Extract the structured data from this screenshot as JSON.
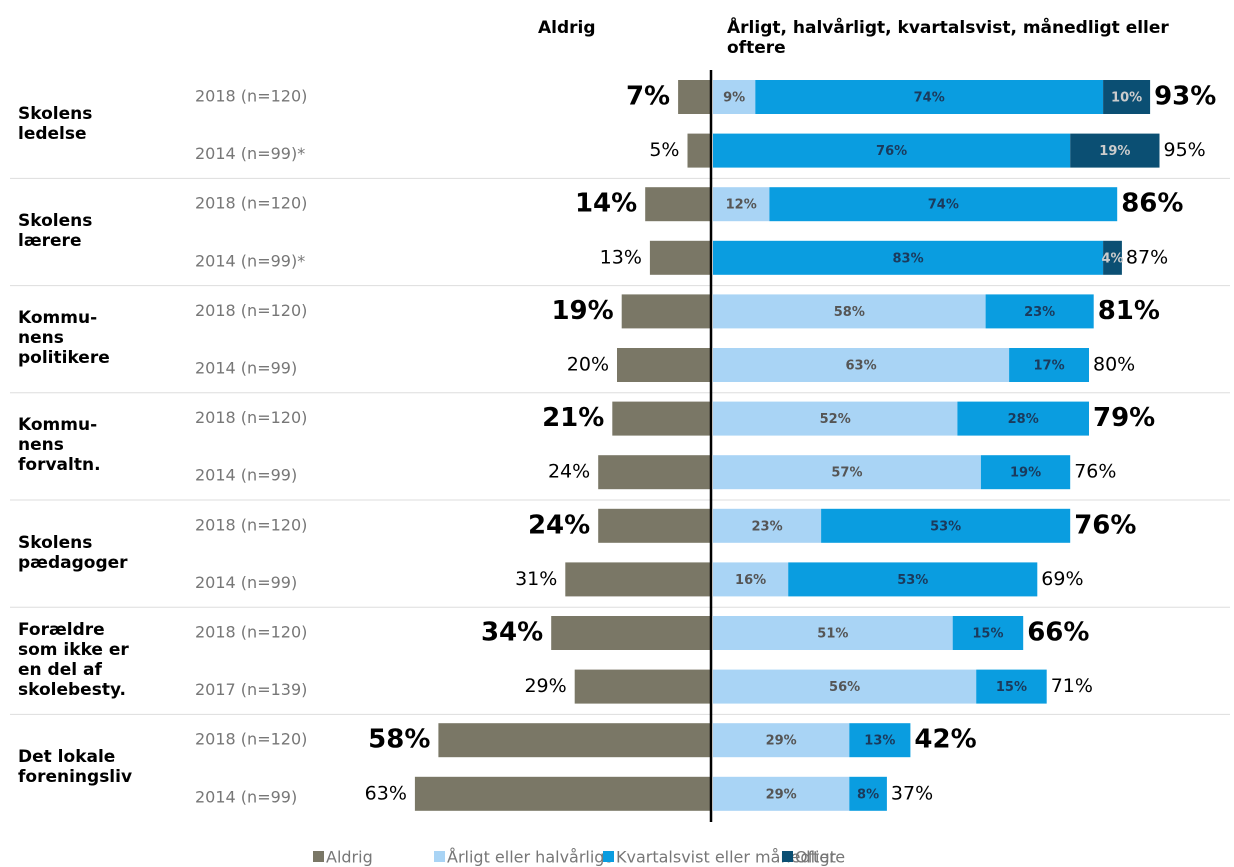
{
  "chart_data": {
    "type": "diverging_bar",
    "header_left": "Aldrig",
    "header_right": "Årligt, halvårligt, kvartalsvist, månedligt eller oftere",
    "groups": [
      "Skolens\nledelse",
      "Skolens\nlærere",
      "Kommu-\nnens\npolitikere",
      "Kommu-\nnens\nforvaltn.",
      "Skolens\npædagoger",
      "Forældre\nsom ikke er\nen del af\nskolebesty.",
      "Det lokale\nforeningsliv"
    ],
    "categories": [
      "2018 (n=120)",
      "2014 (n=99)*",
      "2018 (n=120)",
      "2014 (n=99)*",
      "2018 (n=120)",
      "2014 (n=99)",
      "2018 (n=120)",
      "2014 (n=99)",
      "2018 (n=120)",
      "2014 (n=99)",
      "2018 (n=120)",
      "2017 (n=139)",
      "2018 (n=120)",
      "2014 (n=99)"
    ],
    "series": [
      {
        "name": "Aldrig",
        "color": "#7a7766",
        "side": "left",
        "values": [
          7,
          5,
          14,
          13,
          19,
          20,
          21,
          24,
          24,
          31,
          34,
          29,
          58,
          63
        ],
        "value_labels": [
          "7%",
          "5%",
          "14%",
          "13%",
          "19%",
          "20%",
          "21%",
          "24%",
          "24%",
          "31%",
          "34%",
          "29%",
          "58%",
          "63%"
        ]
      },
      {
        "name": "Årligt eller halvårligt",
        "color": "#a9d4f5",
        "side": "right",
        "label_color": "#555555",
        "values": [
          9,
          null,
          12,
          null,
          58,
          63,
          52,
          57,
          23,
          16,
          51,
          56,
          29,
          29
        ],
        "value_labels": [
          "9%",
          null,
          "12%",
          null,
          "58%",
          "63%",
          "52%",
          "57%",
          "23%",
          "16%",
          "51%",
          "56%",
          "29%",
          "29%"
        ]
      },
      {
        "name": "Kvartalsvist eller månedligt",
        "color": "#0a9de0",
        "side": "right",
        "label_color": "#1b3a5c",
        "values": [
          74,
          76,
          74,
          83,
          23,
          17,
          28,
          19,
          53,
          53,
          15,
          15,
          13,
          8
        ],
        "value_labels": [
          "74%",
          "76%",
          "74%",
          "83%",
          "23%",
          "17%",
          "28%",
          "19%",
          "53%",
          "53%",
          "15%",
          "15%",
          "13%",
          "8%"
        ]
      },
      {
        "name": "Oftere",
        "color": "#0b4f73",
        "side": "right",
        "label_color": "#cccccc",
        "values": [
          10,
          19,
          null,
          4,
          null,
          null,
          null,
          null,
          null,
          null,
          null,
          null,
          null,
          null
        ],
        "value_labels": [
          "10%",
          "19%",
          null,
          "4%",
          null,
          null,
          null,
          null,
          null,
          null,
          null,
          null,
          null,
          null
        ]
      }
    ],
    "totals": [
      93,
      95,
      86,
      87,
      81,
      80,
      79,
      76,
      76,
      69,
      66,
      71,
      42,
      37
    ],
    "totals_labels": [
      "93%",
      "95%",
      "86%",
      "87%",
      "81%",
      "80%",
      "79%",
      "76%",
      "76%",
      "69%",
      "66%",
      "71%",
      "42%",
      "37%"
    ]
  }
}
